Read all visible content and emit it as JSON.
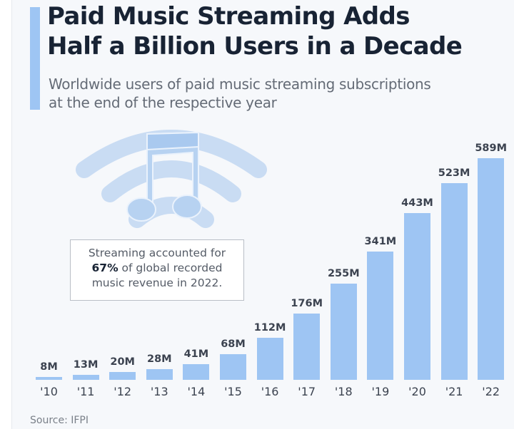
{
  "header": {
    "title_line1": "Paid Music Streaming Adds",
    "title_line2": "Half a Billion Users in a Decade",
    "subtitle_line1": "Worldwide users of paid music streaming subscriptions",
    "subtitle_line2": "at the end of the respective year"
  },
  "callout": {
    "line1": "Streaming accounted for",
    "highlight": "67%",
    "line2_rest": " of global recorded",
    "line3": "music revenue in 2022."
  },
  "icon": "music-note-wifi-icon",
  "source": "Source: IFPI",
  "colors": {
    "bar": "#9ec5f3",
    "accent": "#9ec5f3",
    "title": "#182334",
    "background": "#f6f8fb"
  },
  "chart_data": {
    "type": "bar",
    "title": "Paid Music Streaming Adds Half a Billion Users in a Decade",
    "subtitle": "Worldwide users of paid music streaming subscriptions at the end of the respective year",
    "categories": [
      "'10",
      "'11",
      "'12",
      "'13",
      "'14",
      "'15",
      "'16",
      "'17",
      "'18",
      "'19",
      "'20",
      "'21",
      "'22"
    ],
    "values": [
      8,
      13,
      20,
      28,
      41,
      68,
      112,
      176,
      255,
      341,
      443,
      523,
      589
    ],
    "labels": [
      "8M",
      "13M",
      "20M",
      "28M",
      "41M",
      "68M",
      "112M",
      "176M",
      "255M",
      "341M",
      "443M",
      "523M",
      "589M"
    ],
    "unit": "millions of users",
    "xlabel": "",
    "ylabel": "",
    "ylim": [
      0,
      600
    ],
    "grid": false,
    "legend": null,
    "annotation": "Streaming accounted for 67% of global recorded music revenue in 2022.",
    "source": "Source: IFPI"
  }
}
